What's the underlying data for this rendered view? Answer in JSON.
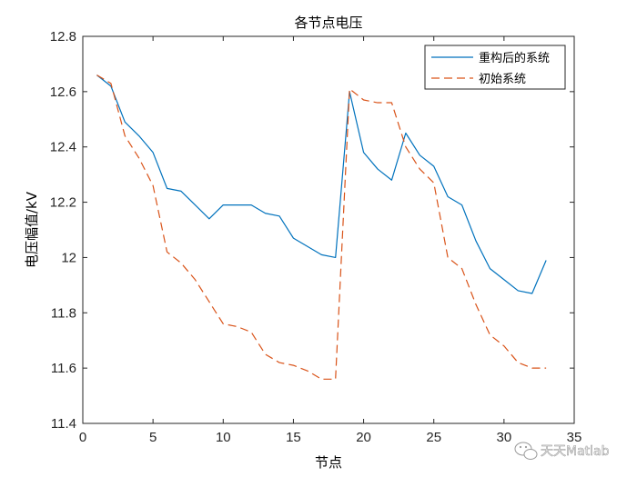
{
  "chart_data": {
    "type": "line",
    "title": "各节点电压",
    "xlabel": "节点",
    "ylabel": "电压幅值/kV",
    "xlim": [
      0,
      35
    ],
    "ylim": [
      11.4,
      12.8
    ],
    "xticks": [
      "0",
      "5",
      "10",
      "15",
      "20",
      "25",
      "30",
      "35"
    ],
    "yticks": [
      "11.4",
      "11.6",
      "11.8",
      "12",
      "12.2",
      "12.4",
      "12.6",
      "12.8"
    ],
    "grid": false,
    "legend_position": "top-right",
    "x": [
      1,
      2,
      3,
      4,
      5,
      6,
      7,
      8,
      9,
      10,
      11,
      12,
      13,
      14,
      15,
      16,
      17,
      18,
      19,
      20,
      21,
      22,
      23,
      24,
      25,
      26,
      27,
      28,
      29,
      30,
      31,
      32,
      33
    ],
    "series": [
      {
        "name": "重构后的系统",
        "color": "#0072BD",
        "style": "solid",
        "values": [
          12.66,
          12.62,
          12.49,
          12.44,
          12.38,
          12.25,
          12.24,
          12.19,
          12.14,
          12.19,
          12.19,
          12.19,
          12.16,
          12.15,
          12.07,
          12.04,
          12.01,
          12.0,
          12.6,
          12.38,
          12.32,
          12.28,
          12.45,
          12.37,
          12.33,
          12.22,
          12.19,
          12.06,
          11.96,
          11.92,
          11.88,
          11.87,
          11.99
        ]
      },
      {
        "name": "初始系统",
        "color": "#D95319",
        "style": "dashed",
        "values": [
          12.66,
          12.63,
          12.44,
          12.36,
          12.26,
          12.02,
          11.98,
          11.92,
          11.84,
          11.76,
          11.75,
          11.73,
          11.65,
          11.62,
          11.61,
          11.59,
          11.56,
          11.56,
          12.61,
          12.57,
          12.56,
          12.56,
          12.4,
          12.32,
          12.27,
          12.0,
          11.96,
          11.83,
          11.72,
          11.68,
          11.62,
          11.6,
          11.6
        ]
      }
    ]
  },
  "watermark": {
    "text": "天天Matlab",
    "icon": "wechat-icon"
  }
}
